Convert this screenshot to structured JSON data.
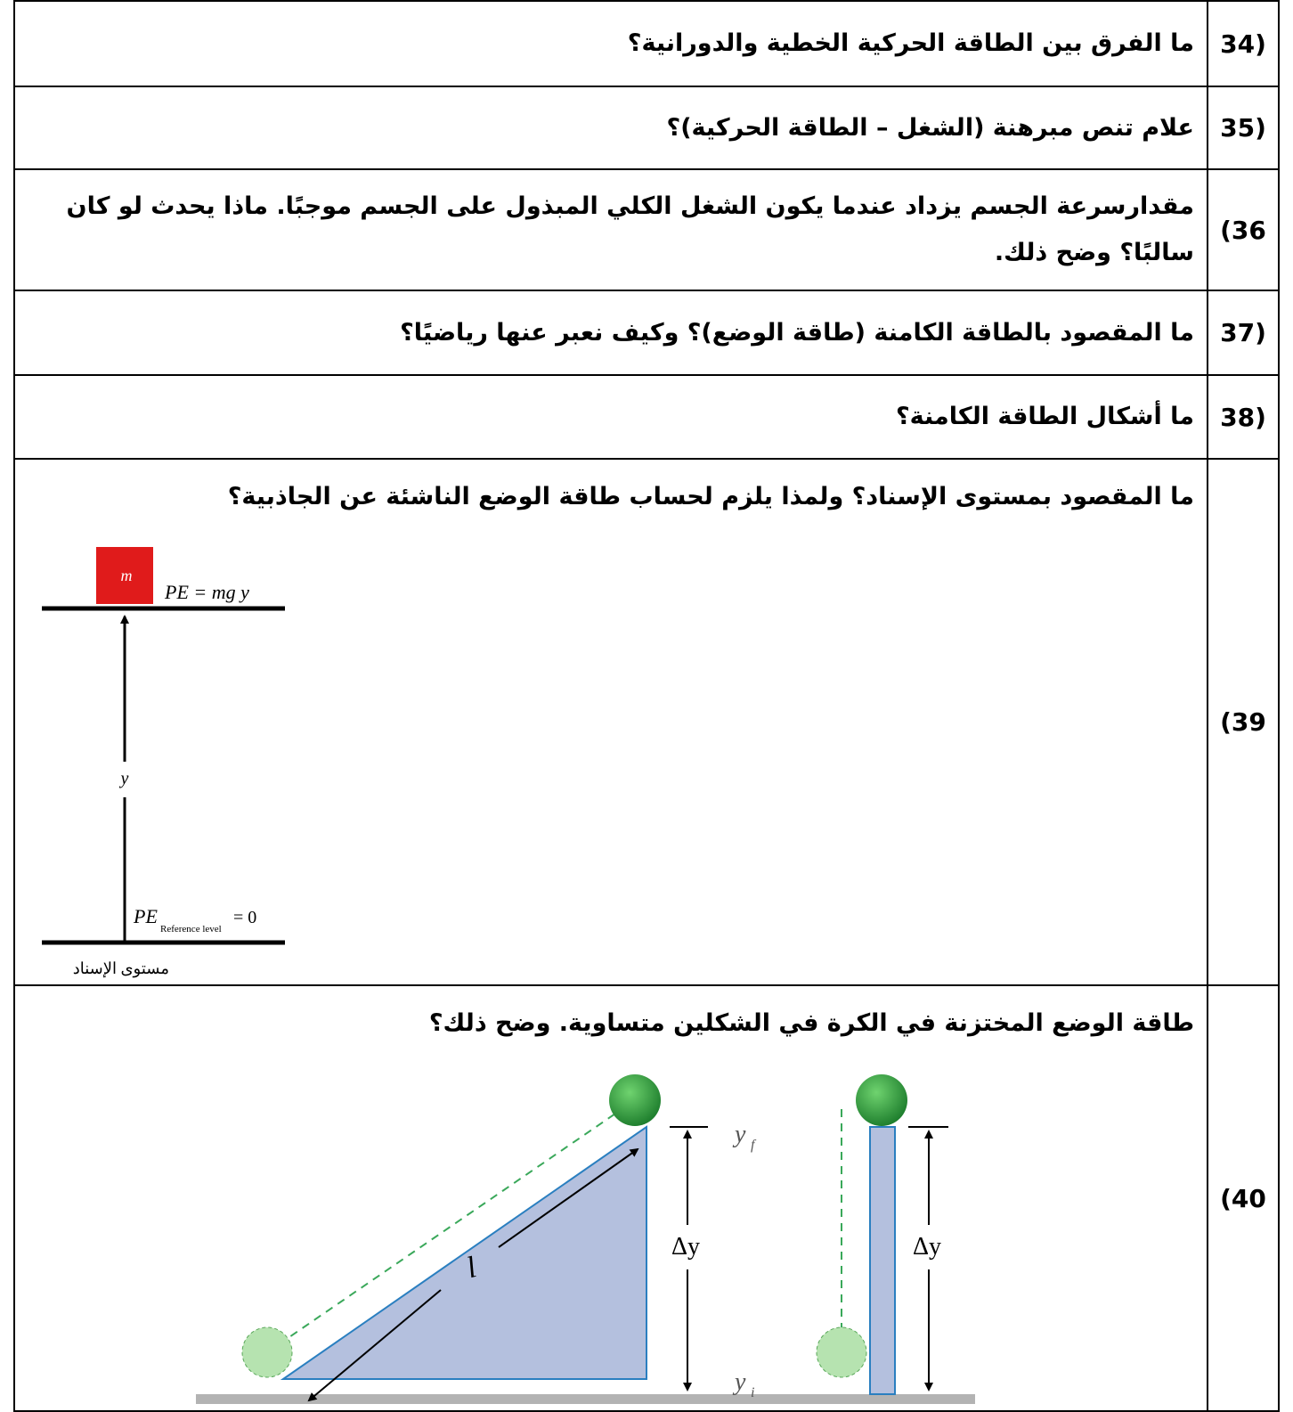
{
  "questions": [
    {
      "number": "34)",
      "text": "ما الفرق بين الطاقة الحركية الخطية والدورانية؟"
    },
    {
      "number": "35)",
      "text": "علام تنص مبرهنة (الشغل – الطاقة الحركية)؟"
    },
    {
      "number": "(36",
      "text": "مقدارسرعة الجسم يزداد عندما يكون الشغل الكلي المبذول على الجسم موجبًا. ماذا يحدث لو كان سالبًا؟ وضح ذلك."
    },
    {
      "number": "37)",
      "text": "ما المقصود بالطاقة الكامنة (طاقة الوضع)؟ وكيف نعبر عنها رياضيًا؟"
    },
    {
      "number": "38)",
      "text": "ما أشكال الطاقة الكامنة؟"
    },
    {
      "number": "(39",
      "text": "ما المقصود بمستوى الإسناد؟ ولمذا يلزم لحساب طاقة الوضع الناشئة عن الجاذبية؟",
      "figure": {
        "mass": "m",
        "formula": "PE = mg y",
        "height": "y",
        "ref_pe": "PE",
        "ref_sub": "Reference level",
        "ref_value": "= 0",
        "ref_caption": "مستوى الإسناد"
      }
    },
    {
      "number": "(40",
      "text": "طاقة الوضع المختزنة في الكرة في الشكلين متساوية. وضح ذلك؟",
      "figure": {
        "length": "l",
        "y_final": "y",
        "y_final_sub": "f",
        "delta_left": "Δy",
        "y_initial": "y",
        "y_initial_sub": "i",
        "delta_right": "Δy"
      }
    }
  ]
}
